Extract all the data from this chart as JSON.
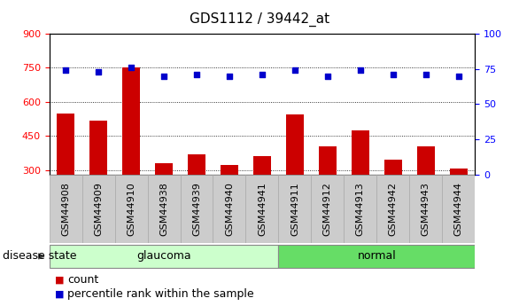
{
  "title": "GDS1112 / 39442_at",
  "samples": [
    "GSM44908",
    "GSM44909",
    "GSM44910",
    "GSM44938",
    "GSM44939",
    "GSM44940",
    "GSM44941",
    "GSM44911",
    "GSM44912",
    "GSM44913",
    "GSM44942",
    "GSM44943",
    "GSM44944"
  ],
  "bar_values": [
    550,
    515,
    750,
    330,
    370,
    320,
    360,
    545,
    405,
    475,
    345,
    405,
    305
  ],
  "dot_values": [
    74,
    73,
    76,
    70,
    71,
    70,
    71,
    74,
    70,
    74,
    71,
    71,
    70
  ],
  "groups": [
    {
      "label": "glaucoma",
      "start": 0,
      "end": 7
    },
    {
      "label": "normal",
      "start": 7,
      "end": 13
    }
  ],
  "ylim_left": [
    280,
    900
  ],
  "ylim_right": [
    0,
    100
  ],
  "yticks_left": [
    300,
    450,
    600,
    750,
    900
  ],
  "yticks_right": [
    0,
    25,
    50,
    75,
    100
  ],
  "bar_color": "#cc0000",
  "dot_color": "#0000cc",
  "bg_color_glaucoma": "#ccffcc",
  "bg_color_normal": "#66dd66",
  "label_bg_color": "#cccccc",
  "legend_count_label": "count",
  "legend_pct_label": "percentile rank within the sample",
  "disease_state_label": "disease state",
  "title_fontsize": 11,
  "tick_fontsize": 8,
  "axis_label_fontsize": 8,
  "group_label_fontsize": 9
}
